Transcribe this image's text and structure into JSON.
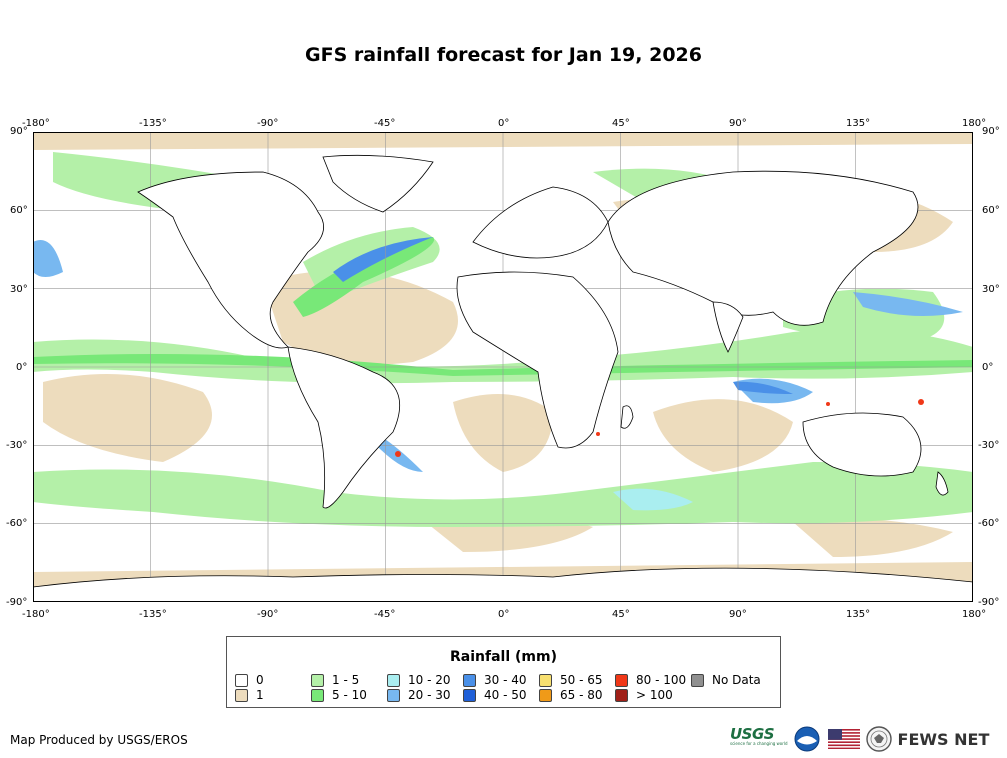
{
  "title": "GFS rainfall forecast for Jan 19, 2026",
  "map": {
    "lon_ticks": [
      "-180°",
      "-135°",
      "-90°",
      "-45°",
      "0°",
      "45°",
      "90°",
      "135°",
      "180°"
    ],
    "lat_ticks": [
      "90°",
      "60°",
      "30°",
      "0°",
      "-30°",
      "-60°",
      "-90°"
    ],
    "colors": {
      "ocean_rain_light": "#a8f0a0",
      "ocean_rain_med": "#78e878",
      "dry": "#eddcbd",
      "heavy_blue": "#4a90e8",
      "cyan": "#a8e8f0",
      "red": "#e03018",
      "land_outline": "#000000",
      "grid": "#888888"
    }
  },
  "legend": {
    "title": "Rainfall (mm)",
    "items": [
      {
        "label": "0",
        "color": "#ffffff"
      },
      {
        "label": "1",
        "color": "#eddcbd"
      },
      {
        "label": "1 - 5",
        "color": "#b4f0a8"
      },
      {
        "label": "5 - 10",
        "color": "#78e878"
      },
      {
        "label": "10 - 20",
        "color": "#aaeef0"
      },
      {
        "label": "20 - 30",
        "color": "#78b8f0"
      },
      {
        "label": "30 - 40",
        "color": "#4a90e8"
      },
      {
        "label": "40 - 50",
        "color": "#2060d8"
      },
      {
        "label": "50 - 65",
        "color": "#f8e070"
      },
      {
        "label": "65 - 80",
        "color": "#f09a18"
      },
      {
        "label": "80 - 100",
        "color": "#f03818"
      },
      {
        "label": "> 100",
        "color": "#a02018"
      },
      {
        "label": "No Data",
        "color": "#909090"
      }
    ]
  },
  "footer": {
    "credit": "Map Produced by USGS/EROS",
    "usgs": "USGS",
    "usgs_tagline": "science for a changing world",
    "fews": "FEWS NET"
  }
}
